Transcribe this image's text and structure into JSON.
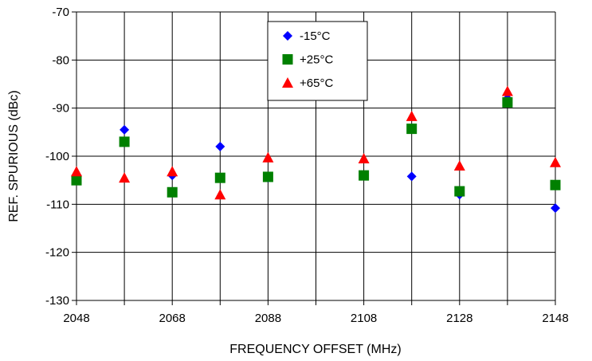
{
  "chart_data": {
    "type": "scatter",
    "title": "",
    "xlabel": "FREQUENCY OFFSET (MHz)",
    "ylabel": "REF. SPURIOUS (dBc)",
    "xlim": [
      2048,
      2148
    ],
    "ylim": [
      -130,
      -70
    ],
    "x_ticks": [
      2048,
      2068,
      2088,
      2108,
      2128,
      2148
    ],
    "y_ticks": [
      -70,
      -80,
      -90,
      -100,
      -110,
      -120,
      -130
    ],
    "x_tick_labels": [
      "2048",
      "2068",
      "2088",
      "2108",
      "2128",
      "2148"
    ],
    "y_tick_labels": [
      "-70",
      "-80",
      "-90",
      "-100",
      "-110",
      "-120",
      "-130"
    ],
    "x_grid_step": 10,
    "grid": true,
    "legend_position": "top-center",
    "series": [
      {
        "name": "-15°C",
        "marker": "diamond",
        "color": "#0000ff",
        "points": [
          {
            "x": 2048,
            "y": -104
          },
          {
            "x": 2058,
            "y": -94.5
          },
          {
            "x": 2068,
            "y": -104
          },
          {
            "x": 2078,
            "y": -98
          },
          {
            "x": 2088,
            "y": -104.5
          },
          {
            "x": 2108,
            "y": -104
          },
          {
            "x": 2118,
            "y": -104.2
          },
          {
            "x": 2128,
            "y": -108
          },
          {
            "x": 2138,
            "y": -88
          },
          {
            "x": 2148,
            "y": -110.8
          }
        ]
      },
      {
        "name": "+25°C",
        "marker": "square",
        "color": "#008000",
        "points": [
          {
            "x": 2048,
            "y": -105
          },
          {
            "x": 2058,
            "y": -97
          },
          {
            "x": 2068,
            "y": -107.5
          },
          {
            "x": 2078,
            "y": -104.5
          },
          {
            "x": 2088,
            "y": -104.3
          },
          {
            "x": 2108,
            "y": -104
          },
          {
            "x": 2118,
            "y": -94.3
          },
          {
            "x": 2128,
            "y": -107.3
          },
          {
            "x": 2138,
            "y": -88.8
          },
          {
            "x": 2148,
            "y": -106
          }
        ]
      },
      {
        "name": "+65°C",
        "marker": "triangle",
        "color": "#ff0000",
        "points": [
          {
            "x": 2048,
            "y": -103.2
          },
          {
            "x": 2058,
            "y": -104.5
          },
          {
            "x": 2068,
            "y": -103.2
          },
          {
            "x": 2078,
            "y": -108
          },
          {
            "x": 2088,
            "y": -100.3
          },
          {
            "x": 2108,
            "y": -100.5
          },
          {
            "x": 2118,
            "y": -91.7
          },
          {
            "x": 2128,
            "y": -102
          },
          {
            "x": 2138,
            "y": -86.5
          },
          {
            "x": 2148,
            "y": -101.3
          }
        ]
      }
    ]
  }
}
